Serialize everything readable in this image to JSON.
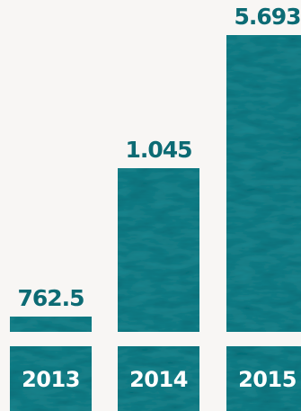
{
  "chart_data": {
    "type": "bar",
    "categories": [
      "2013",
      "2014",
      "2015"
    ],
    "values": [
      762.5,
      1045,
      5693
    ],
    "value_labels": [
      "762.5",
      "1.045",
      "5.693"
    ],
    "title": "",
    "xlabel": "",
    "ylabel": "",
    "grid": false,
    "legend": "none",
    "scale_note": "bar heights are not to a linear scale",
    "relative_heights": [
      0.05,
      0.55,
      1.0
    ],
    "colors": {
      "bar": "#0c6b74",
      "bar_texture": "#0a5d66",
      "value_text": "#0c6b74",
      "category_text": "#ffffff",
      "background": "#f8f6f4"
    }
  }
}
